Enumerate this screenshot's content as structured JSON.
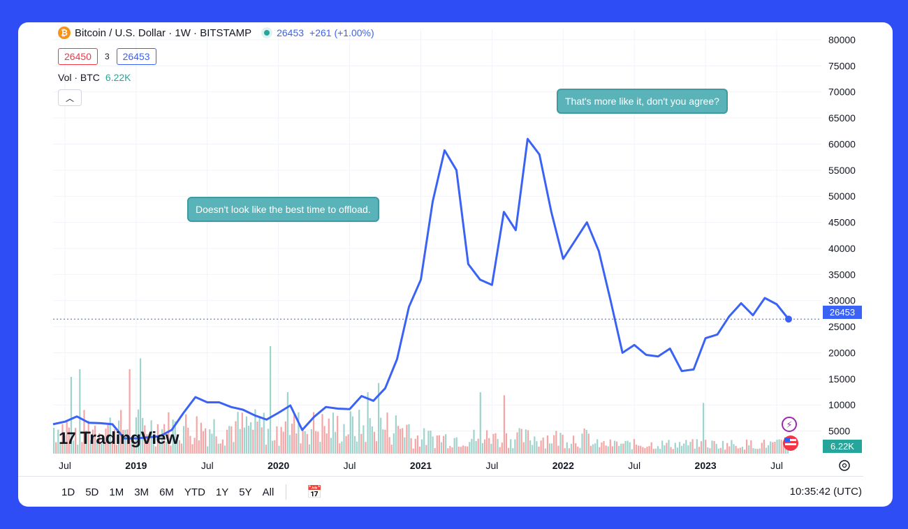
{
  "header": {
    "symbol_title": "Bitcoin / U.S. Dollar · 1W · BITSTAMP",
    "coin_icon": "bitcoin-icon",
    "last_price": "26453",
    "change": "+261 (+1.00%)",
    "bid": "26450",
    "spread": "3",
    "ask": "26453",
    "volume_label": "Vol · BTC",
    "volume_value": "6.22K"
  },
  "annotations": {
    "callout_1": "Doesn't look like the best time to offload.",
    "callout_2": "That's more like it, don't you agree?"
  },
  "price_axis_badge": "26453",
  "volume_axis_badge": "6.22K",
  "watermark": "TradingView",
  "toolbar": {
    "ranges": [
      "1D",
      "5D",
      "1M",
      "3M",
      "6M",
      "YTD",
      "1Y",
      "5Y",
      "All"
    ],
    "clock": "10:35:42 (UTC)"
  },
  "colors": {
    "background": "#2f4df5",
    "line": "#3a62f5",
    "vol_up": "#9fd3cc",
    "vol_down": "#f4a6a6",
    "callout": "#5ab3b9"
  },
  "chart_data": {
    "type": "line",
    "title": "Bitcoin / U.S. Dollar · 1W · BITSTAMP",
    "x_ticks": [
      "Jul",
      "2019",
      "Jul",
      "2020",
      "Jul",
      "2021",
      "Jul",
      "2022",
      "Jul",
      "2023",
      "Jul"
    ],
    "y_ticks": [
      5000,
      10000,
      15000,
      20000,
      25000,
      30000,
      35000,
      40000,
      45000,
      50000,
      55000,
      60000,
      65000,
      70000,
      75000,
      80000
    ],
    "ylim": [
      0,
      82000
    ],
    "grid": true,
    "current_price": 26453,
    "series": [
      {
        "x": [
          "2018-06",
          "2018-07",
          "2018-08",
          "2018-09",
          "2018-10",
          "2018-11",
          "2018-12",
          "2019-01",
          "2019-02",
          "2019-03",
          "2019-04",
          "2019-05",
          "2019-06",
          "2019-07",
          "2019-08",
          "2019-09",
          "2019-10",
          "2019-11",
          "2019-12",
          "2020-01",
          "2020-02",
          "2020-03",
          "2020-04",
          "2020-05",
          "2020-06",
          "2020-07",
          "2020-08",
          "2020-09",
          "2020-10",
          "2020-11",
          "2020-12",
          "2021-01",
          "2021-02",
          "2021-03",
          "2021-04",
          "2021-05",
          "2021-06",
          "2021-07",
          "2021-08",
          "2021-09",
          "2021-10",
          "2021-11",
          "2021-12",
          "2022-01",
          "2022-02",
          "2022-03",
          "2022-04",
          "2022-05",
          "2022-06",
          "2022-07",
          "2022-08",
          "2022-09",
          "2022-10",
          "2022-11",
          "2022-12",
          "2023-01",
          "2023-02",
          "2023-03",
          "2023-04",
          "2023-05",
          "2023-06",
          "2023-07",
          "2023-08"
        ],
        "values": [
          6300,
          6800,
          7800,
          6600,
          6500,
          6300,
          3600,
          3600,
          3800,
          4000,
          5200,
          8500,
          11500,
          10500,
          10500,
          9600,
          9100,
          8000,
          7200,
          8500,
          9900,
          5200,
          7700,
          9600,
          9300,
          9200,
          11700,
          10800,
          13200,
          18800,
          28800,
          34000,
          49000,
          58800,
          55000,
          37000,
          34000,
          33000,
          47000,
          43500,
          61000,
          58000,
          47000,
          38000,
          41500,
          45000,
          39500,
          30000,
          20000,
          21500,
          19600,
          19300,
          20800,
          16500,
          16800,
          22800,
          23500,
          27000,
          29500,
          27200,
          30500,
          29300,
          26453
        ]
      }
    ]
  }
}
